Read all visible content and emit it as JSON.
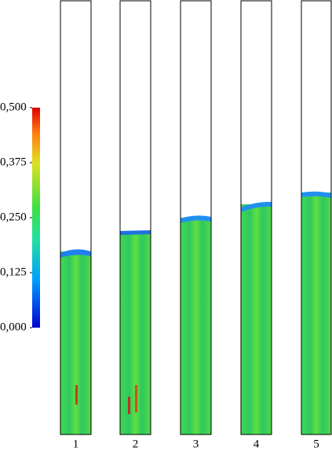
{
  "colorbar": {
    "ticks": [
      {
        "value": 0,
        "label": "0,000"
      },
      {
        "value": 0.125,
        "label": "0,125"
      },
      {
        "value": 0.25,
        "label": "0,250"
      },
      {
        "value": 0.375,
        "label": "0,375"
      },
      {
        "value": 0.5,
        "label": "0,500"
      }
    ]
  },
  "columns": {
    "labels": [
      "1",
      "2",
      "3",
      "4",
      "5"
    ]
  }
}
